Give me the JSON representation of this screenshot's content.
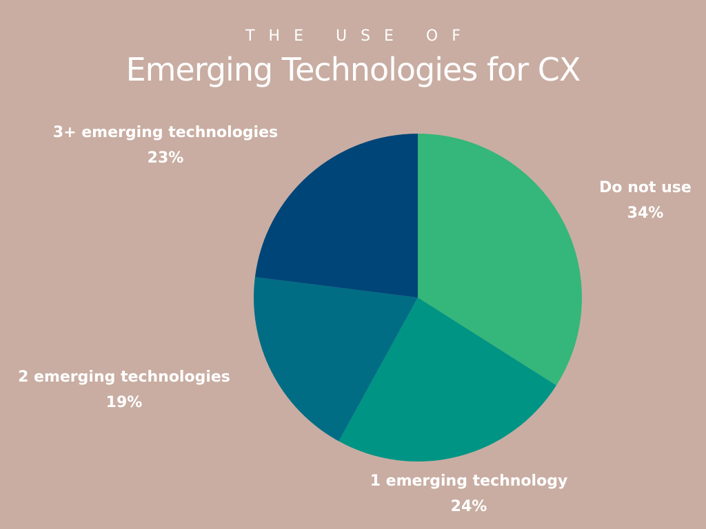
{
  "eyebrow": "THE USE OF",
  "title": "Emerging Technologies for CX",
  "chart_data": {
    "type": "pie",
    "title": "Emerging Technologies for CX",
    "slices": [
      {
        "label": "Do not use",
        "value": 34,
        "display": "34%",
        "color": "#35b67a"
      },
      {
        "label": "1 emerging technology",
        "value": 24,
        "display": "24%",
        "color": "#009485"
      },
      {
        "label": "2 emerging technologies",
        "value": 19,
        "display": "19%",
        "color": "#006d85"
      },
      {
        "label": "3+ emerging technologies",
        "value": 23,
        "display": "23%",
        "color": "#004578"
      }
    ],
    "start_angle_deg": 0,
    "direction": "clockwise",
    "legend": "none"
  }
}
